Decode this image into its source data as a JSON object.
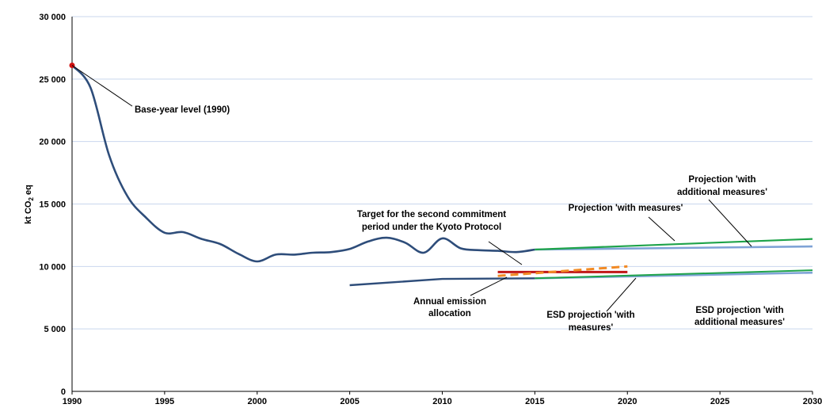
{
  "chart_data": {
    "type": "line",
    "title": "",
    "xlabel": "",
    "ylabel_parts": [
      "kt CO",
      "2",
      " eq"
    ],
    "xlim": [
      1990,
      2030
    ],
    "ylim": [
      0,
      30000
    ],
    "x_ticks": [
      "1990",
      "1995",
      "2000",
      "2005",
      "2010",
      "2015",
      "2020",
      "2025",
      "2030"
    ],
    "y_ticks": [
      "0",
      "5 000",
      "10 000",
      "15 000",
      "20 000",
      "25 000",
      "30 000"
    ],
    "grid": "horizontal",
    "colors": {
      "historic": "#2E4D7A",
      "projection_wm": "#7FA3D6",
      "projection_wam": "#1EA34A",
      "kyoto_target": "#C01818",
      "allocation": "#F28A24",
      "base_point": "#D01010",
      "grid": "#C9D7EE"
    },
    "series": [
      {
        "x": [
          1990,
          1991,
          1992,
          1993,
          1994,
          1995,
          1996,
          1997,
          1998,
          1999,
          2000,
          2001,
          2002,
          2003,
          2004,
          2005,
          2006,
          2007,
          2008,
          2009,
          2010,
          2011,
          2012,
          2013,
          2014,
          2015
        ],
        "values": [
          26100,
          24300,
          18900,
          15600,
          13900,
          12700,
          12750,
          12200,
          11800,
          11000,
          10400,
          10950,
          10950,
          11100,
          11150,
          11400,
          12000,
          12300,
          11900,
          11100,
          12250,
          11450,
          11300,
          11250,
          11150,
          11350
        ]
      },
      {
        "x": [
          2015,
          2030
        ],
        "values": [
          11350,
          11600
        ]
      },
      {
        "x": [
          2015,
          2030
        ],
        "values": [
          11350,
          12200
        ]
      },
      {
        "x": [
          2005,
          2010,
          2015
        ],
        "values": [
          8500,
          9000,
          9050
        ]
      },
      {
        "x": [
          2015,
          2030
        ],
        "values": [
          9050,
          9500
        ]
      },
      {
        "x": [
          2015,
          2030
        ],
        "values": [
          9050,
          9700
        ]
      },
      {
        "x": [
          2013,
          2020
        ],
        "values": [
          9550,
          9550
        ]
      },
      {
        "x": [
          2013,
          2020
        ],
        "values": [
          9250,
          10000
        ]
      }
    ],
    "base_point": {
      "x": 1990,
      "value": 26100
    },
    "annotations": {
      "base_year": "Base-year level (1990)",
      "kyoto_line1": "Target for the second commitment",
      "kyoto_line2": "period under the Kyoto Protocol",
      "proj_wm": "Projection 'with measures'",
      "proj_wam_line1": "Projection 'with",
      "proj_wam_line2": "additional measures'",
      "allocation_line1": "Annual emission",
      "allocation_line2": "allocation",
      "esd_wm_line1": "ESD projection 'with",
      "esd_wm_line2": "measures'",
      "esd_wam_line1": "ESD projection 'with",
      "esd_wam_line2": "additional measures'"
    }
  }
}
